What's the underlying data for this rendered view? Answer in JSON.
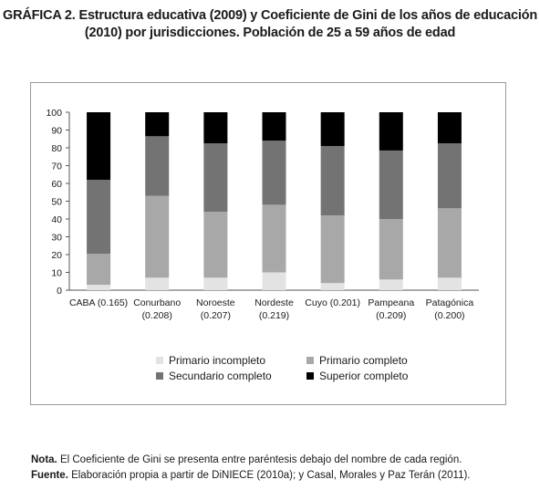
{
  "figure": {
    "label": "GRÁFICA 2.",
    "title_line1": "Estructura educativa (2009) y Coeficiente de Gini de los años de educación",
    "title_line2": "(2010) por jurisdicciones. Población de 25 a 59 años de edad"
  },
  "notes": {
    "nota_label": "Nota.",
    "nota_text": " El Coeficiente de Gini se presenta entre paréntesis debajo del nombre de cada región.",
    "fuente_label": "Fuente.",
    "fuente_text": " Elaboración propia a partir de DiNIECE (2010a); y Casal, Morales y Paz Terán (2011)."
  },
  "chart_data": {
    "type": "bar",
    "stacked": true,
    "title": "",
    "xlabel": "",
    "ylabel": "",
    "ylim": [
      0,
      100
    ],
    "yticks": [
      0,
      10,
      20,
      30,
      40,
      50,
      60,
      70,
      80,
      90,
      100
    ],
    "grid": false,
    "legend_position": "bottom",
    "categories": [
      [
        "CABA (0.165)"
      ],
      [
        "Conurbano",
        "(0.208)"
      ],
      [
        "Noroeste",
        "(0.207)"
      ],
      [
        "Nordeste",
        "(0.219)"
      ],
      [
        "Cuyo (0.201)"
      ],
      [
        "Pampeana",
        "(0.209)"
      ],
      [
        "Patagónica",
        "(0.200)"
      ]
    ],
    "series": [
      {
        "name": "Primario incompleto",
        "color": "#e3e3e3",
        "values": [
          3,
          7,
          7,
          10,
          4,
          6,
          7
        ]
      },
      {
        "name": "Primario completo",
        "color": "#a8a8a8",
        "values": [
          17.5,
          46,
          37,
          38,
          38,
          34,
          39
        ]
      },
      {
        "name": "Secundario completo",
        "color": "#737373",
        "values": [
          41.5,
          33.5,
          38.5,
          36,
          39,
          38.5,
          36.5
        ]
      },
      {
        "name": "Superior completo",
        "color": "#000000",
        "values": [
          38,
          13.5,
          17.5,
          16,
          19,
          21.5,
          17.5
        ]
      }
    ]
  }
}
